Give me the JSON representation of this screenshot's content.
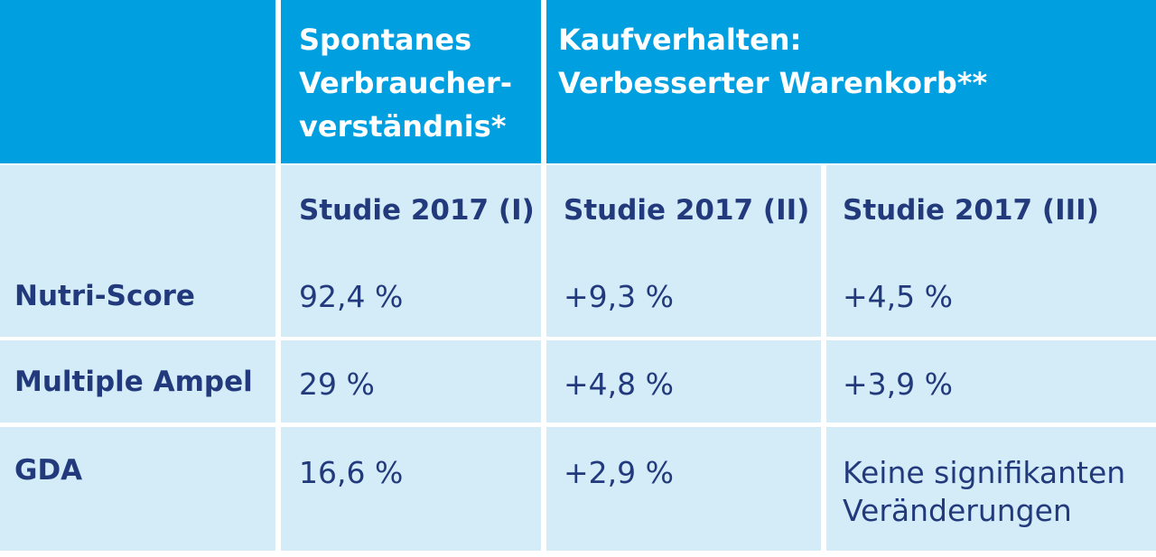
{
  "table": {
    "header": {
      "col1": "Spontanes Verbraucher- verständnis*",
      "col1_lines": [
        "Spontanes",
        "Verbraucher-",
        "verständnis*"
      ],
      "col2_lines": [
        "Kaufverhalten:",
        "Verbesserter Warenkorb**"
      ]
    },
    "subheader": {
      "s1": "Studie 2017 (I)",
      "s2": "Studie 2017 (II)",
      "s3": "Studie 2017 (III)"
    },
    "rows": [
      {
        "label": "Nutri-Score",
        "v1": "92,4 %",
        "v2": "+9,3 %",
        "v3": "+4,5 %"
      },
      {
        "label": "Multiple Ampel",
        "v1": "29 %",
        "v2": "+4,8 %",
        "v3": "+3,9 %"
      },
      {
        "label": "GDA",
        "v1": "16,6 %",
        "v2": "+2,9 %",
        "v3_lines": [
          "Keine signifikanten",
          "Veränderungen"
        ]
      }
    ],
    "colors": {
      "header_bg": "#009fe0",
      "body_bg": "#d4ecf8",
      "text_dark": "#223a7c",
      "header_text": "#ffffff"
    }
  }
}
